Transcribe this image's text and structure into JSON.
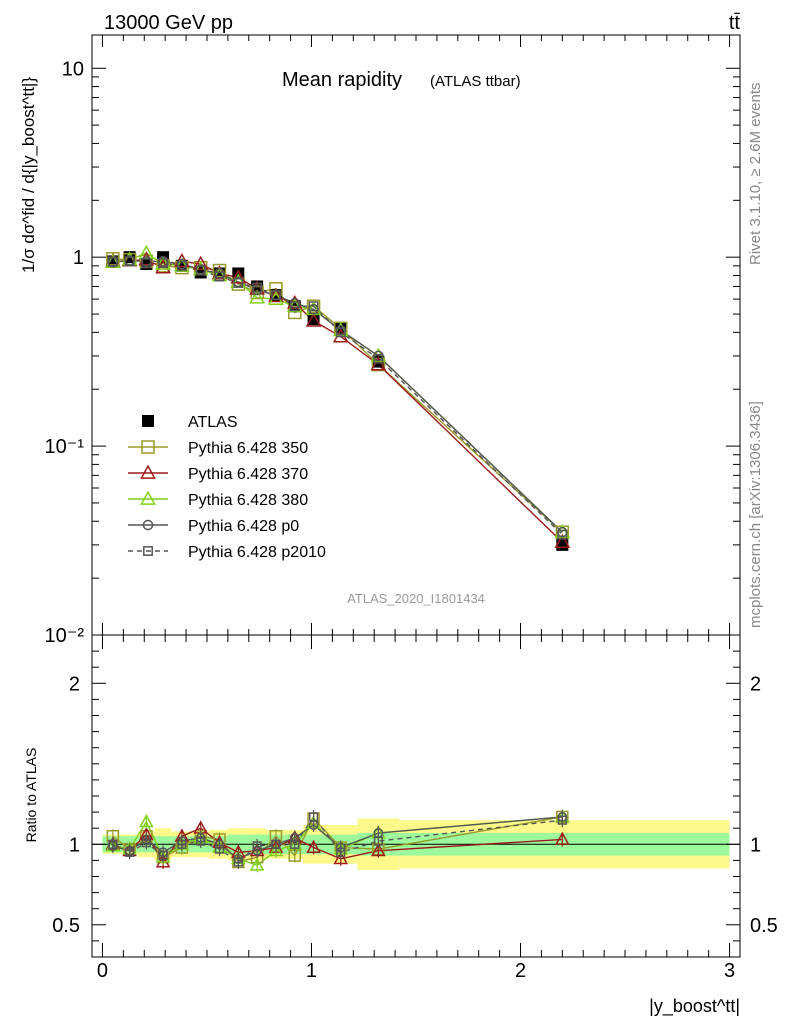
{
  "header": {
    "left": "13000 GeV pp",
    "right": "tt̄"
  },
  "side_text": {
    "rivet": "Rivet 3.1.10, ≥ 2.6M events",
    "mcplots": "mcplots.cern.ch [arXiv:1306.3436]"
  },
  "analysis_id": "ATLAS_2020_I1801434",
  "chart_data": [
    {
      "type": "scatter",
      "title": "Mean rapidity",
      "subtitle": "(ATLAS ttbar)",
      "ylabel": "1/σ dσ^fid / d{|y_boost^tt|}",
      "yscale": "log",
      "ylim": [
        0.01,
        15
      ],
      "xlim": [
        -0.05,
        3.05
      ],
      "y_tick_labels": [
        "10⁻²",
        "10⁻¹",
        "1",
        "10"
      ],
      "legend_position": "left-middle",
      "x": [
        0.05,
        0.13,
        0.21,
        0.29,
        0.38,
        0.47,
        0.56,
        0.65,
        0.74,
        0.83,
        0.92,
        1.01,
        1.14,
        1.32,
        2.2
      ],
      "series": [
        {
          "name": "ATLAS",
          "marker": "filled-square",
          "color": "#000000",
          "values": [
            0.95,
            1.0,
            0.92,
            1.0,
            0.9,
            0.83,
            0.82,
            0.82,
            0.7,
            0.63,
            0.55,
            0.47,
            0.42,
            0.28,
            0.03
          ]
        },
        {
          "name": "Pythia 6.428 350",
          "marker": "open-square",
          "color": "#9a9a2a",
          "values": [
            0.98,
            0.97,
            0.95,
            0.9,
            0.88,
            0.88,
            0.85,
            0.72,
            0.65,
            0.68,
            0.51,
            0.55,
            0.42,
            0.27,
            0.035
          ]
        },
        {
          "name": "Pythia 6.428 370",
          "marker": "open-triangle",
          "color": "#9b1b1b",
          "values": [
            0.95,
            0.96,
            0.97,
            0.88,
            0.95,
            0.92,
            0.82,
            0.78,
            0.68,
            0.62,
            0.57,
            0.46,
            0.38,
            0.27,
            0.031
          ]
        },
        {
          "name": "Pythia 6.428 380",
          "marker": "open-triangle",
          "color": "#7fd11b",
          "values": [
            0.94,
            0.97,
            1.05,
            0.92,
            0.9,
            0.86,
            0.8,
            0.74,
            0.61,
            0.6,
            0.55,
            0.53,
            0.41,
            0.3,
            0.035
          ]
        },
        {
          "name": "Pythia 6.428 p0",
          "marker": "open-circle",
          "color": "#555555",
          "values": [
            0.94,
            0.96,
            0.95,
            0.95,
            0.92,
            0.86,
            0.82,
            0.74,
            0.67,
            0.63,
            0.57,
            0.53,
            0.41,
            0.3,
            0.035
          ]
        },
        {
          "name": "Pythia 6.428 p2010",
          "marker": "open-square-small",
          "dashed": true,
          "color": "#555555",
          "values": [
            0.95,
            0.95,
            0.93,
            0.93,
            0.9,
            0.85,
            0.79,
            0.73,
            0.69,
            0.63,
            0.55,
            0.55,
            0.4,
            0.29,
            0.034
          ]
        }
      ]
    },
    {
      "type": "scatter",
      "ylabel": "Ratio to ATLAS",
      "xlabel": "|y_boost^tt|",
      "ylim": [
        0.3,
        2.3
      ],
      "xlim": [
        -0.05,
        3.05
      ],
      "x_tick_labels": [
        "0",
        "1",
        "2",
        "3"
      ],
      "y_tick_labels": [
        "0.5",
        "1",
        "2"
      ],
      "reference_line": 1,
      "band_edges": [
        0.0,
        0.09,
        0.17,
        0.25,
        0.33,
        0.42,
        0.51,
        0.6,
        0.69,
        0.78,
        0.87,
        0.96,
        1.06,
        1.22,
        1.42,
        3.0
      ],
      "band_inner": [
        0.05,
        0.05,
        0.05,
        0.05,
        0.05,
        0.05,
        0.05,
        0.06,
        0.06,
        0.06,
        0.06,
        0.06,
        0.06,
        0.07,
        0.07
      ],
      "band_outer": [
        0.06,
        0.06,
        0.08,
        0.1,
        0.08,
        0.08,
        0.09,
        0.1,
        0.1,
        0.09,
        0.09,
        0.12,
        0.12,
        0.16,
        0.15
      ],
      "x": [
        0.05,
        0.13,
        0.21,
        0.29,
        0.38,
        0.47,
        0.56,
        0.65,
        0.74,
        0.83,
        0.92,
        1.01,
        1.14,
        1.32,
        2.2
      ],
      "series": [
        {
          "name": "Pythia 6.428 350",
          "color": "#9a9a2a",
          "values": [
            1.05,
            0.97,
            1.05,
            0.92,
            0.98,
            1.05,
            1.03,
            0.89,
            0.92,
            1.05,
            0.93,
            1.16,
            0.98,
            0.97,
            1.17
          ]
        },
        {
          "name": "Pythia 6.428 370",
          "color": "#9b1b1b",
          "values": [
            1.0,
            0.96,
            1.06,
            0.89,
            1.05,
            1.1,
            1.01,
            0.95,
            0.96,
            0.98,
            1.04,
            0.98,
            0.91,
            0.96,
            1.03
          ]
        },
        {
          "name": "Pythia 6.428 380",
          "color": "#7fd11b",
          "values": [
            0.99,
            0.97,
            1.14,
            0.92,
            1.0,
            1.04,
            0.98,
            0.91,
            0.87,
            0.96,
            1.0,
            1.13,
            0.97,
            1.07,
            1.17
          ]
        },
        {
          "name": "Pythia 6.428 p0",
          "color": "#555555",
          "values": [
            0.99,
            0.96,
            1.03,
            0.95,
            1.02,
            1.04,
            1.0,
            0.91,
            0.96,
            1.0,
            1.04,
            1.12,
            0.98,
            1.07,
            1.17
          ]
        },
        {
          "name": "Pythia 6.428 p2010",
          "dashed": true,
          "color": "#555555",
          "values": [
            1.0,
            0.95,
            1.01,
            0.93,
            1.0,
            1.02,
            0.97,
            0.89,
            0.99,
            1.0,
            1.0,
            1.17,
            0.95,
            1.02,
            1.15
          ]
        }
      ]
    }
  ]
}
